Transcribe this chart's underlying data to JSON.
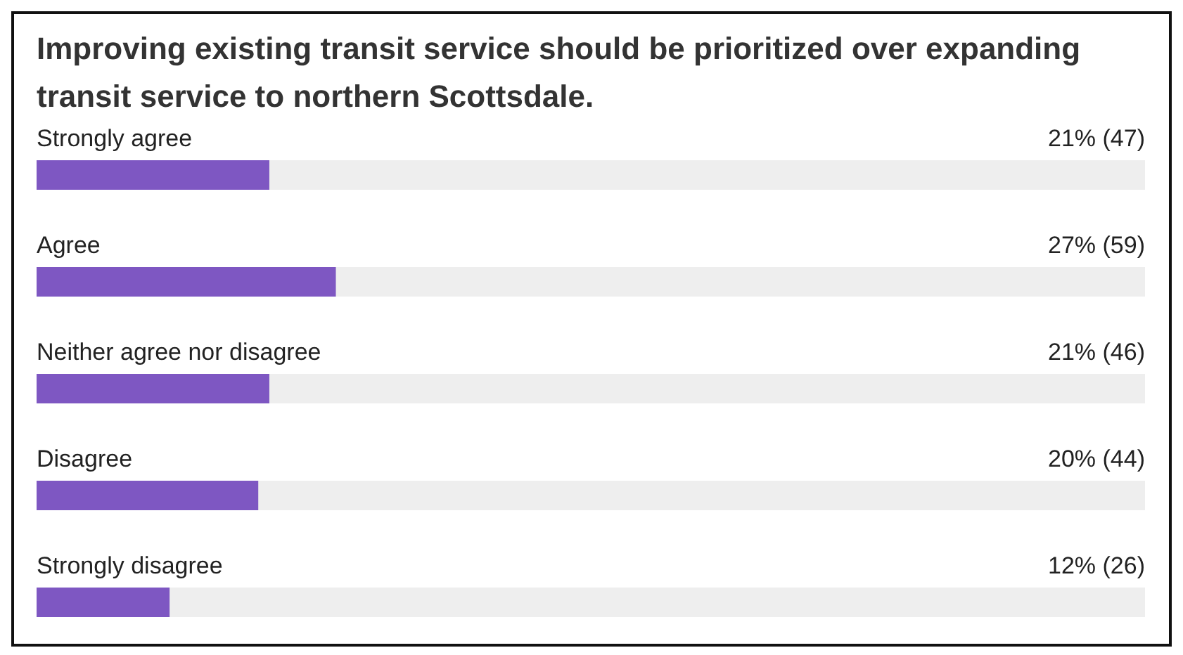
{
  "chart_data": {
    "type": "bar",
    "orientation": "horizontal",
    "title": "Improving existing transit service should be prioritized over expanding transit service to northern Scottsdale.",
    "categories": [
      "Strongly agree",
      "Agree",
      "Neither agree nor disagree",
      "Disagree",
      "Strongly disagree"
    ],
    "values": [
      21,
      27,
      21,
      20,
      12
    ],
    "value_labels": [
      "21% (47)",
      "27% (59)",
      "21% (46)",
      "20% (44)",
      "12% (26)"
    ],
    "color": "#7e57c2",
    "xlim": [
      0,
      100
    ]
  }
}
